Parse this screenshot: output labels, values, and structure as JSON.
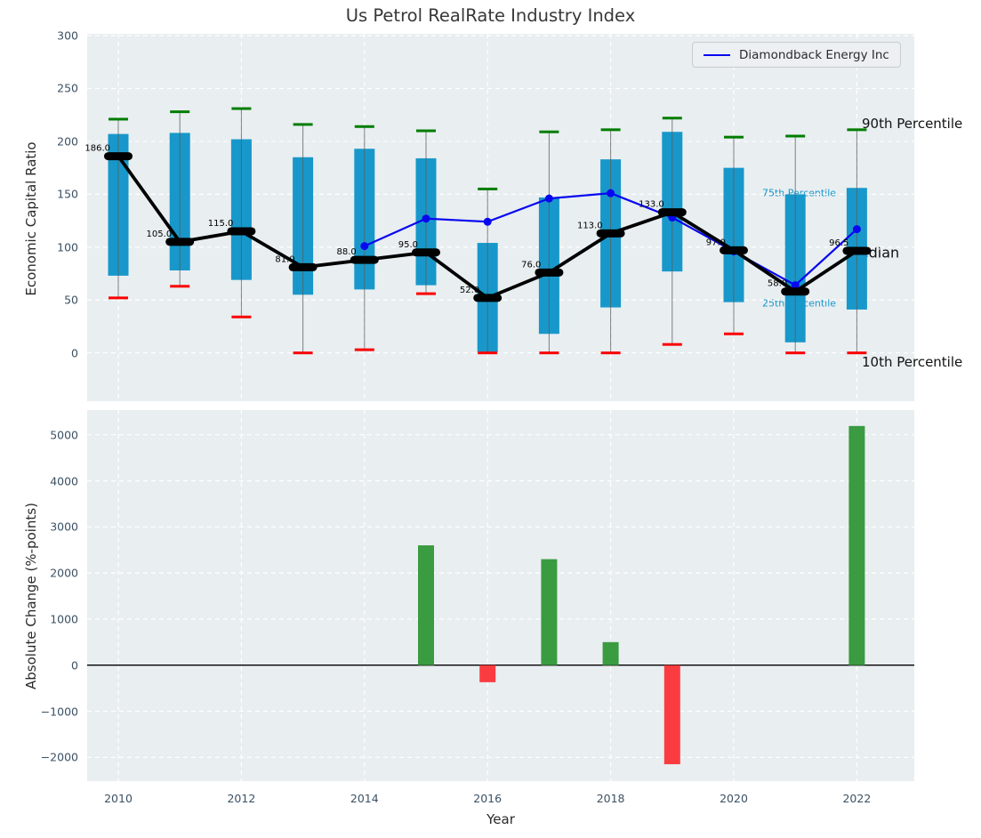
{
  "title": "Us Petrol RealRate Industry Index",
  "legend": {
    "series_label": "Diamondback Energy Inc"
  },
  "annotations": {
    "p90_label": "90th Percentile",
    "p75_label": "75th Percentile",
    "median_label": "Median",
    "p25_label": "25th Percentile",
    "p10_label": "10th Percentile"
  },
  "axes": {
    "top": {
      "ylabel": "Economic Capital Ratio",
      "yticks": [
        300,
        250,
        200,
        150,
        100,
        50,
        0
      ]
    },
    "bottom": {
      "ylabel": "Absolute Change (%-points)",
      "xlabel": "Year",
      "yticks": [
        5000,
        4000,
        3000,
        2000,
        1000,
        0,
        -1000,
        -2000
      ],
      "xticks": [
        2010,
        2012,
        2014,
        2016,
        2018,
        2020,
        2022
      ]
    }
  },
  "colors": {
    "panel_bg": "#e9eef1",
    "grid": "#ffffff",
    "box": "#1898ca",
    "whisker": "#5a5a5a",
    "cap_high": "#007d00",
    "cap_low": "#fb0000",
    "median_line": "#000000",
    "company_line": "#0808f0",
    "bar_positive": "#3a9b41",
    "bar_negative": "#fa3c40",
    "tick_text": "#3c5164",
    "annotation_teal": "#1898ca"
  },
  "chart_data": [
    {
      "type": "box-percentile-with-line",
      "title": "Us Petrol RealRate Industry Index",
      "ylabel": "Economic Capital Ratio",
      "ylim": [
        -46,
        302
      ],
      "grid": true,
      "legend_position": "upper right",
      "x": [
        2010,
        2011,
        2012,
        2013,
        2014,
        2015,
        2016,
        2017,
        2018,
        2019,
        2020,
        2021,
        2022
      ],
      "series": [
        {
          "name": "90th Percentile",
          "values": [
            221,
            228,
            231,
            216,
            214,
            210,
            155,
            209,
            211,
            222,
            204,
            205,
            211
          ]
        },
        {
          "name": "75th Percentile",
          "values": [
            207,
            208,
            202,
            185,
            193,
            184,
            104,
            147,
            183,
            209,
            175,
            150,
            156
          ]
        },
        {
          "name": "Median",
          "values": [
            186.0,
            105.0,
            115.0,
            81.0,
            88.0,
            95.0,
            52.0,
            76.0,
            113.0,
            133.0,
            97.0,
            58.0,
            96.5
          ]
        },
        {
          "name": "25th Percentile",
          "values": [
            73,
            78,
            69,
            55,
            60,
            64,
            1,
            18,
            43,
            77,
            48,
            10,
            41
          ]
        },
        {
          "name": "10th Percentile",
          "values": [
            52,
            63,
            34,
            0,
            3,
            56,
            0,
            0,
            0,
            8,
            18,
            0,
            0
          ]
        },
        {
          "name": "Diamondback Energy Inc",
          "values": [
            null,
            null,
            null,
            null,
            101,
            127,
            124,
            146,
            151,
            128,
            96,
            64,
            117
          ]
        }
      ],
      "median_labels": [
        "186.0",
        "105.0",
        "115.0",
        "81.0",
        "88.0",
        "95.0",
        "52.0",
        "76.0",
        "113.0",
        "133.0",
        "97.0",
        "58.0",
        "96.5"
      ]
    },
    {
      "type": "bar",
      "ylabel": "Absolute Change (%-points)",
      "xlabel": "Year",
      "ylim": [
        -2520,
        5560
      ],
      "grid": true,
      "categories": [
        2010,
        2011,
        2012,
        2013,
        2014,
        2015,
        2016,
        2017,
        2018,
        2019,
        2020,
        2021,
        2022
      ],
      "values": [
        null,
        null,
        null,
        null,
        null,
        2600,
        -370,
        2300,
        500,
        -2150,
        null,
        null,
        5190
      ]
    }
  ]
}
